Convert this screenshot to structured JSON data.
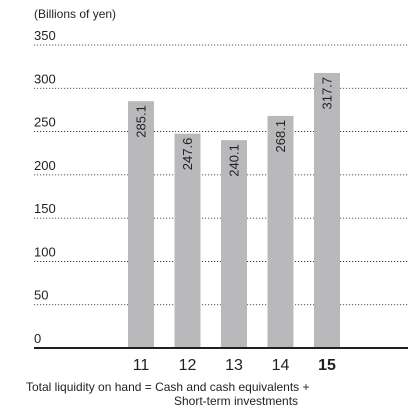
{
  "chart_data": {
    "type": "bar",
    "unit_label": "(Billions of yen)",
    "categories": [
      "11",
      "12",
      "13",
      "14",
      "15"
    ],
    "highlight_category": "15",
    "values": [
      285.1,
      247.6,
      240.1,
      268.1,
      317.7
    ],
    "data_labels": [
      "285.1",
      "247.6",
      "240.1",
      "268.1",
      "317.7"
    ],
    "yticks": [
      "0",
      "50",
      "100",
      "150",
      "200",
      "250",
      "300",
      "350"
    ],
    "ylim": [
      0,
      350
    ],
    "grid": true,
    "bar_color": "#b9b9bb"
  },
  "footnote": {
    "line1": "Total liquidity on hand = Cash and cash equivalents +",
    "line2": "Short-term investments"
  }
}
